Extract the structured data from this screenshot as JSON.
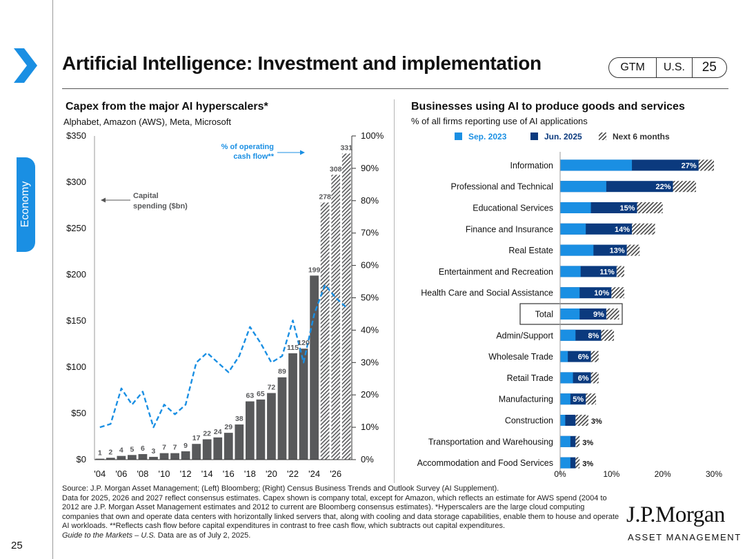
{
  "sidebar": {
    "section_label": "Economy",
    "page_number": "25"
  },
  "header": {
    "title": "Artificial Intelligence: Investment and implementation",
    "badges": [
      "GTM",
      "U.S.",
      "25"
    ]
  },
  "left_panel": {
    "title": "Capex from the major AI hyperscalers*",
    "subtitle": "Alphabet, Amazon (AWS), Meta, Microsoft"
  },
  "right_panel": {
    "title": "Businesses using AI to produce goods and services",
    "subtitle": "% of all firms reporting use of AI applications"
  },
  "colors": {
    "bar_dark": "#58595b",
    "line_blue": "#1a8fe3",
    "light_blue": "#1a8fe3",
    "navy": "#0b3a7e",
    "accent_blue": "#1a8fe3"
  },
  "chart_data": [
    {
      "type": "bar",
      "title": "Capex from the major AI hyperscalers*",
      "subtitle": "Alphabet, Amazon (AWS), Meta, Microsoft",
      "categories": [
        "2004",
        "2005",
        "2006",
        "2007",
        "2008",
        "2009",
        "2010",
        "2011",
        "2012",
        "2013",
        "2014",
        "2015",
        "2016",
        "2017",
        "2018",
        "2019",
        "2020",
        "2021",
        "2022",
        "2023",
        "2024",
        "2025",
        "2026",
        "2027"
      ],
      "x_tick_labels": [
        "'04",
        "'06",
        "'08",
        "'10",
        "'12",
        "'14",
        "'16",
        "'18",
        "'20",
        "'22",
        "'24",
        "'26"
      ],
      "series": [
        {
          "name": "Capital spending ($bn)",
          "axis": "left",
          "values": [
            1,
            2,
            4,
            5,
            6,
            3,
            7,
            7,
            9,
            17,
            22,
            24,
            29,
            38,
            63,
            65,
            72,
            89,
            115,
            120,
            199,
            278,
            308,
            331
          ],
          "value_labels": [
            "1",
            "2",
            "4",
            "5",
            "6",
            "3",
            "7",
            "7",
            "9",
            "17",
            "22",
            "24",
            "29",
            "38",
            "63",
            "65",
            "72",
            "89",
            "115",
            "120",
            "199",
            "278",
            "308",
            "331"
          ],
          "estimate_from": "2025"
        },
        {
          "name": "% of operating cash flow**",
          "axis": "right",
          "type": "line",
          "style": "dashed",
          "values": [
            10,
            11,
            22,
            17,
            21,
            10,
            17,
            14,
            17,
            30,
            33,
            30,
            27,
            32,
            41,
            36,
            30,
            32,
            43,
            30,
            45,
            54,
            50,
            47
          ]
        }
      ],
      "ylim_left": [
        0,
        350
      ],
      "y_ticks_left": [
        "$0",
        "$50",
        "$100",
        "$150",
        "$200",
        "$250",
        "$300",
        "$350"
      ],
      "ylim_right": [
        0,
        100
      ],
      "y_ticks_right": [
        "0%",
        "10%",
        "20%",
        "30%",
        "40%",
        "50%",
        "60%",
        "70%",
        "80%",
        "90%",
        "100%"
      ],
      "annotations": {
        "capex_label_line1": "Capital",
        "capex_label_line2": "spending  ($bn)",
        "ocf_label_line1": "% of operating",
        "ocf_label_line2": "cash flow**"
      }
    },
    {
      "type": "bar",
      "orientation": "horizontal",
      "title": "Businesses using AI to produce goods and services",
      "subtitle": "% of all firms reporting use of AI applications",
      "legend": [
        "Sep. 2023",
        "Jun. 2025",
        "Next 6 months"
      ],
      "categories": [
        "Information",
        "Professional and Technical",
        "Educational Services",
        "Finance and Insurance",
        "Real Estate",
        "Entertainment and Recreation",
        "Health Care and Social Assistance",
        "Total",
        "Admin/Support",
        "Wholesale Trade",
        "Retail Trade",
        "Manufacturing",
        "Construction",
        "Transportation and Warehousing",
        "Accommodation and Food Services"
      ],
      "highlight": "Total",
      "series": [
        {
          "name": "Sep. 2023",
          "values": [
            14,
            9,
            6,
            5,
            6.5,
            4,
            3.8,
            3.8,
            3,
            1.5,
            2.5,
            2,
            1,
            2,
            2
          ]
        },
        {
          "name": "Jun. 2025",
          "values": [
            27,
            22,
            15,
            14,
            13,
            11,
            10,
            9,
            8,
            6,
            6,
            5,
            3,
            3,
            3
          ]
        },
        {
          "name": "Next 6 months",
          "values": [
            30,
            26.5,
            20,
            18.5,
            15.5,
            12.5,
            12.5,
            11.5,
            10.5,
            7.5,
            7.5,
            7,
            5.5,
            3.8,
            3.8
          ]
        }
      ],
      "value_labels": [
        "27%",
        "22%",
        "15%",
        "14%",
        "13%",
        "11%",
        "10%",
        "9%",
        "8%",
        "6%",
        "6%",
        "5%",
        "3%",
        "3%",
        "3%"
      ],
      "xlim": [
        0,
        30
      ],
      "x_ticks": [
        "0%",
        "10%",
        "20%",
        "30%"
      ]
    }
  ],
  "footer": {
    "line1": "Source: J.P. Morgan Asset Management; (Left) Bloomberg; (Right) Census Business Trends and Outlook Survey (AI Supplement).",
    "line2": "Data for 2025, 2026 and 2027 reflect consensus estimates. Capex shown is company total, except for Amazon, which reflects an estimate for AWS spend (2004 to 2012 are J.P. Morgan Asset Management estimates and 2012 to current are Bloomberg consensus estimates). *Hyperscalers are the large cloud computing companies that own and operate data centers with horizontally linked servers that, along with cooling and data storage capabilities, enable them to house and operate AI workloads. **Reflects cash flow before capital expenditures in contrast to free cash flow, which subtracts out capital expenditures.",
    "guide_italic": "Guide to the Markets – U.S.",
    "guide_rest": " Data are as of July 2, 2025."
  },
  "logo": {
    "main": "J.P.Morgan",
    "sub": "ASSET MANAGEMENT"
  }
}
